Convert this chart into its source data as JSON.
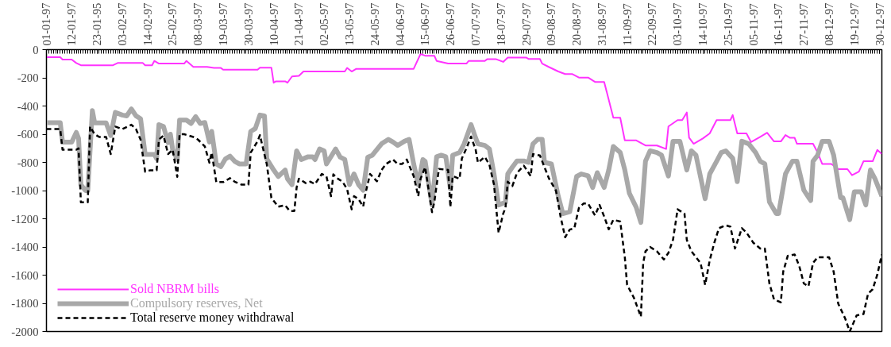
{
  "chart_data": {
    "type": "line",
    "xlim": [
      "1997-01-01",
      "1997-12-31"
    ],
    "ylim": [
      -2000,
      0
    ],
    "xticks": [
      {
        "value": "1997-01-01",
        "label": "01-01-97"
      },
      {
        "value": "1997-01-12",
        "label": "12-01-97"
      },
      {
        "value": "1997-01-23",
        "label": "23-01-95"
      },
      {
        "value": "1997-02-03",
        "label": "03-02-97"
      },
      {
        "value": "1997-02-14",
        "label": "14-02-97"
      },
      {
        "value": "1997-02-25",
        "label": "25-02-97"
      },
      {
        "value": "1997-03-08",
        "label": "08-03-97"
      },
      {
        "value": "1997-03-19",
        "label": "19-03-97"
      },
      {
        "value": "1997-03-30",
        "label": "30-03-97"
      },
      {
        "value": "1997-04-10",
        "label": "10-04-97"
      },
      {
        "value": "1997-04-21",
        "label": "21-04-97"
      },
      {
        "value": "1997-05-02",
        "label": "02-05-97"
      },
      {
        "value": "1997-05-13",
        "label": "13-05-97"
      },
      {
        "value": "1997-05-24",
        "label": "24-05-97"
      },
      {
        "value": "1997-06-04",
        "label": "04-06-97"
      },
      {
        "value": "1997-06-15",
        "label": "15-06-97"
      },
      {
        "value": "1997-06-26",
        "label": "26-06-97"
      },
      {
        "value": "1997-07-07",
        "label": "07-07-97"
      },
      {
        "value": "1997-07-18",
        "label": "18-07-97"
      },
      {
        "value": "1997-07-29",
        "label": "29-07-97"
      },
      {
        "value": "1997-08-09",
        "label": "09-08-97"
      },
      {
        "value": "1997-08-20",
        "label": "20-08-97"
      },
      {
        "value": "1997-08-31",
        "label": "31-08-97"
      },
      {
        "value": "1997-09-11",
        "label": "11-09-97"
      },
      {
        "value": "1997-09-22",
        "label": "22-09-97"
      },
      {
        "value": "1997-10-03",
        "label": "03-10-97"
      },
      {
        "value": "1997-10-14",
        "label": "14-10-97"
      },
      {
        "value": "1997-10-25",
        "label": "25-10-97"
      },
      {
        "value": "1997-11-05",
        "label": "05-11-97"
      },
      {
        "value": "1997-11-16",
        "label": "16-11-97"
      },
      {
        "value": "1997-11-27",
        "label": "27-11-97"
      },
      {
        "value": "1997-12-08",
        "label": "08-12-97"
      },
      {
        "value": "1997-12-19",
        "label": "19-12-97"
      },
      {
        "value": "1997-12-30",
        "label": "30-12-97"
      }
    ],
    "yticks": [
      0,
      -200,
      -400,
      -600,
      -800,
      -1000,
      -1200,
      -1400,
      -1600,
      -1800,
      -2000
    ],
    "legend": "bottom left",
    "series": [
      {
        "name": "Sold NBRM bills",
        "color": "#ff33ff",
        "line_style": "solid",
        "x": [
          "1997-01-01",
          "1997-01-07",
          "1997-01-08",
          "1997-01-12",
          "1997-01-14",
          "1997-01-16",
          "1997-01-30",
          "1997-02-01",
          "1997-02-12",
          "1997-02-13",
          "1997-02-16",
          "1997-02-17",
          "1997-02-19",
          "1997-03-02",
          "1997-03-03",
          "1997-03-06",
          "1997-03-12",
          "1997-03-15",
          "1997-03-18",
          "1997-03-19",
          "1997-04-03",
          "1997-04-04",
          "1997-04-09",
          "1997-04-10",
          "1997-04-11",
          "1997-04-15",
          "1997-04-16",
          "1997-04-18",
          "1997-04-21",
          "1997-04-23",
          "1997-05-11",
          "1997-05-12",
          "1997-05-14",
          "1997-05-16",
          "1997-06-10",
          "1997-06-13",
          "1997-06-15",
          "1997-06-19",
          "1997-06-20",
          "1997-06-25",
          "1997-07-03",
          "1997-07-04",
          "1997-07-11",
          "1997-07-12",
          "1997-07-16",
          "1997-07-19",
          "1997-07-21",
          "1997-07-29",
          "1997-07-30",
          "1997-08-04",
          "1997-08-05",
          "1997-08-08",
          "1997-08-12",
          "1997-08-15",
          "1997-08-18",
          "1997-08-21",
          "1997-08-25",
          "1997-08-28",
          "1997-09-01",
          "1997-09-05",
          "1997-09-08",
          "1997-09-10",
          "1997-09-15",
          "1997-09-19",
          "1997-09-24",
          "1997-09-28",
          "1997-09-29",
          "1997-10-03",
          "1997-10-05",
          "1997-10-07",
          "1997-10-08",
          "1997-10-10",
          "1997-10-14",
          "1997-10-17",
          "1997-10-20",
          "1997-10-26",
          "1997-10-27",
          "1997-10-29",
          "1997-11-02",
          "1997-11-04",
          "1997-11-08",
          "1997-11-11",
          "1997-11-14",
          "1997-11-17",
          "1997-11-19",
          "1997-11-21",
          "1997-11-23",
          "1997-11-24",
          "1997-12-01",
          "1997-12-03",
          "1997-12-05",
          "1997-12-09",
          "1997-12-12",
          "1997-12-16",
          "1997-12-18",
          "1997-12-21",
          "1997-12-23",
          "1997-12-27",
          "1997-12-29",
          "1997-12-31"
        ],
        "values": [
          -54,
          -54,
          -70,
          -70,
          -95,
          -111,
          -111,
          -95,
          -95,
          -111,
          -111,
          -80,
          -99,
          -99,
          -80,
          -122,
          -122,
          -130,
          -130,
          -142,
          -142,
          -128,
          -128,
          -235,
          -225,
          -225,
          -235,
          -190,
          -186,
          -155,
          -155,
          -130,
          -155,
          -136,
          -136,
          -31,
          -43,
          -43,
          -80,
          -99,
          -99,
          -80,
          -80,
          -68,
          -68,
          -87,
          -56,
          -56,
          -66,
          -66,
          -99,
          -124,
          -155,
          -173,
          -173,
          -198,
          -198,
          -229,
          -229,
          -483,
          -483,
          -644,
          -644,
          -680,
          -680,
          -705,
          -545,
          -500,
          -500,
          -446,
          -625,
          -668,
          -630,
          -594,
          -500,
          -500,
          -464,
          -594,
          -594,
          -656,
          -619,
          -590,
          -651,
          -651,
          -606,
          -626,
          -626,
          -668,
          -668,
          -730,
          -811,
          -811,
          -848,
          -848,
          -891,
          -866,
          -792,
          -792,
          -712,
          -740
        ]
      },
      {
        "name": "Compulsory reserves, Net",
        "color": "#a8a8a8",
        "line_style": "solid",
        "x": [
          "1997-01-01",
          "1997-01-07",
          "1997-01-08",
          "1997-01-12",
          "1997-01-14",
          "1997-01-15",
          "1997-01-16",
          "1997-01-18",
          "1997-01-19",
          "1997-01-21",
          "1997-01-22",
          "1997-01-27",
          "1997-01-29",
          "1997-01-31",
          "1997-02-03",
          "1997-02-05",
          "1997-02-07",
          "1997-02-09",
          "1997-02-11",
          "1997-02-13",
          "1997-02-15",
          "1997-02-17",
          "1997-02-18",
          "1997-02-19",
          "1997-02-21",
          "1997-02-23",
          "1997-02-24",
          "1997-02-25",
          "1997-02-27",
          "1997-02-28",
          "1997-03-03",
          "1997-03-05",
          "1997-03-07",
          "1997-03-09",
          "1997-03-11",
          "1997-03-13",
          "1997-03-14",
          "1997-03-16",
          "1997-03-18",
          "1997-03-20",
          "1997-03-22",
          "1997-03-24",
          "1997-03-26",
          "1997-03-29",
          "1997-03-31",
          "1997-04-02",
          "1997-04-04",
          "1997-04-06",
          "1997-04-07",
          "1997-04-10",
          "1997-04-12",
          "1997-04-15",
          "1997-04-16",
          "1997-04-18",
          "1997-04-20",
          "1997-04-22",
          "1997-04-25",
          "1997-04-27",
          "1997-04-28",
          "1997-04-30",
          "1997-05-02",
          "1997-05-03",
          "1997-05-07",
          "1997-05-09",
          "1997-05-11",
          "1997-05-13",
          "1997-05-15",
          "1997-05-17",
          "1997-05-19",
          "1997-05-21",
          "1997-05-23",
          "1997-05-27",
          "1997-05-30",
          "1997-06-01",
          "1997-06-03",
          "1997-06-06",
          "1997-06-08",
          "1997-06-10",
          "1997-06-12",
          "1997-06-14",
          "1997-06-15",
          "1997-06-18",
          "1997-06-20",
          "1997-06-22",
          "1997-06-24",
          "1997-06-26",
          "1997-06-27",
          "1997-06-30",
          "1997-07-02",
          "1997-07-05",
          "1997-07-07",
          "1997-07-08",
          "1997-07-11",
          "1997-07-13",
          "1997-07-15",
          "1997-07-17",
          "1997-07-20",
          "1997-07-21",
          "1997-07-23",
          "1997-07-25",
          "1997-07-28",
          "1997-07-30",
          "1997-08-01",
          "1997-08-03",
          "1997-08-05",
          "1997-08-06",
          "1997-08-09",
          "1997-08-12",
          "1997-08-14",
          "1997-08-17",
          "1997-08-20",
          "1997-08-22",
          "1997-08-25",
          "1997-08-27",
          "1997-08-29",
          "1997-09-01",
          "1997-09-03",
          "1997-09-05",
          "1997-09-08",
          "1997-09-10",
          "1997-09-12",
          "1997-09-15",
          "1997-09-17",
          "1997-09-19",
          "1997-09-21",
          "1997-09-24",
          "1997-09-26",
          "1997-09-29",
          "1997-10-01",
          "1997-10-04",
          "1997-10-07",
          "1997-10-09",
          "1997-10-11",
          "1997-10-15",
          "1997-10-17",
          "1997-10-20",
          "1997-10-22",
          "1997-10-24",
          "1997-10-27",
          "1997-10-29",
          "1997-10-31",
          "1997-11-03",
          "1997-11-06",
          "1997-11-08",
          "1997-11-10",
          "1997-11-12",
          "1997-11-15",
          "1997-11-16",
          "1997-11-19",
          "1997-11-22",
          "1997-11-24",
          "1997-11-27",
          "1997-11-30",
          "1997-12-01",
          "1997-12-03",
          "1997-12-05",
          "1997-12-08",
          "1997-12-10",
          "1997-12-13",
          "1997-12-14",
          "1997-12-17",
          "1997-12-19",
          "1997-12-22",
          "1997-12-24",
          "1997-12-26",
          "1997-12-28",
          "1997-12-31"
        ],
        "values": [
          -518,
          -518,
          -656,
          -656,
          -587,
          -630,
          -958,
          -1000,
          -1000,
          -433,
          -520,
          -520,
          -610,
          -445,
          -464,
          -470,
          -421,
          -470,
          -490,
          -743,
          -743,
          -743,
          -773,
          -532,
          -545,
          -660,
          -600,
          -710,
          -780,
          -500,
          -500,
          -524,
          -475,
          -524,
          -517,
          -656,
          -580,
          -811,
          -830,
          -775,
          -756,
          -792,
          -811,
          -811,
          -580,
          -560,
          -464,
          -470,
          -775,
          -854,
          -900,
          -854,
          -916,
          -958,
          -718,
          -780,
          -760,
          -760,
          -780,
          -705,
          -718,
          -811,
          -705,
          -763,
          -780,
          -958,
          -882,
          -958,
          -997,
          -763,
          -749,
          -668,
          -637,
          -656,
          -680,
          -650,
          -637,
          -811,
          -958,
          -780,
          -792,
          -1102,
          -760,
          -749,
          -760,
          -988,
          -749,
          -730,
          -668,
          -532,
          -626,
          -668,
          -680,
          -705,
          -882,
          -1102,
          -1083,
          -882,
          -834,
          -790,
          -790,
          -800,
          -668,
          -637,
          -637,
          -800,
          -811,
          -1040,
          -1164,
          -1150,
          -900,
          -882,
          -895,
          -978,
          -873,
          -978,
          -854,
          -687,
          -730,
          -854,
          -1020,
          -1120,
          -1226,
          -792,
          -718,
          -730,
          -749,
          -897,
          -650,
          -650,
          -854,
          -718,
          -749,
          -1058,
          -882,
          -792,
          -730,
          -718,
          -771,
          -937,
          -650,
          -668,
          -730,
          -792,
          -811,
          -1080,
          -1164,
          -1164,
          -882,
          -792,
          -792,
          -997,
          -1071,
          -792,
          -749,
          -650,
          -650,
          -749,
          -1050,
          -1050,
          -1206,
          -1009,
          -1009,
          -1102,
          -854,
          -916,
          -1040
        ]
      },
      {
        "name": "Total reserve money withdrawal",
        "color": "#000000",
        "line_style": "dashed",
        "x": [
          "1997-01-01",
          "1997-01-07",
          "1997-01-08",
          "1997-01-14",
          "1997-01-15",
          "1997-01-16",
          "1997-01-19",
          "1997-01-20",
          "1997-01-22",
          "1997-01-24",
          "1997-01-27",
          "1997-01-29",
          "1997-01-31",
          "1997-02-03",
          "1997-02-07",
          "1997-02-09",
          "1997-02-11",
          "1997-02-13",
          "1997-02-15",
          "1997-02-18",
          "1997-02-19",
          "1997-02-21",
          "1997-02-23",
          "1997-02-25",
          "1997-02-27",
          "1997-02-28",
          "1997-03-02",
          "1997-03-06",
          "1997-03-08",
          "1997-03-11",
          "1997-03-13",
          "1997-03-14",
          "1997-03-16",
          "1997-03-19",
          "1997-03-22",
          "1997-03-24",
          "1997-03-27",
          "1997-03-30",
          "1997-03-31",
          "1997-04-03",
          "1997-04-04",
          "1997-04-07",
          "1997-04-09",
          "1997-04-12",
          "1997-04-15",
          "1997-04-17",
          "1997-04-19",
          "1997-04-20",
          "1997-04-21",
          "1997-04-24",
          "1997-04-26",
          "1997-04-28",
          "1997-05-01",
          "1997-05-03",
          "1997-05-05",
          "1997-05-06",
          "1997-05-08",
          "1997-05-10",
          "1997-05-12",
          "1997-05-14",
          "1997-05-15",
          "1997-05-17",
          "1997-05-19",
          "1997-05-20",
          "1997-05-22",
          "1997-05-25",
          "1997-05-27",
          "1997-05-29",
          "1997-06-01",
          "1997-06-03",
          "1997-06-05",
          "1997-06-07",
          "1997-06-10",
          "1997-06-12",
          "1997-06-13",
          "1997-06-15",
          "1997-06-18",
          "1997-06-19",
          "1997-06-21",
          "1997-06-25",
          "1997-06-26",
          "1997-06-27",
          "1997-06-30",
          "1997-07-01",
          "1997-07-03",
          "1997-07-05",
          "1997-07-07",
          "1997-07-08",
          "1997-07-11",
          "1997-07-13",
          "1997-07-15",
          "1997-07-17",
          "1997-07-19",
          "1997-07-20",
          "1997-07-21",
          "1997-07-23",
          "1997-07-25",
          "1997-07-28",
          "1997-07-31",
          "1997-08-01",
          "1997-08-04",
          "1997-08-06",
          "1997-08-08",
          "1997-08-11",
          "1997-08-13",
          "1997-08-15",
          "1997-08-17",
          "1997-08-19",
          "1997-08-21",
          "1997-08-23",
          "1997-08-25",
          "1997-08-28",
          "1997-08-30",
          "1997-09-01",
          "1997-09-03",
          "1997-09-05",
          "1997-09-08",
          "1997-09-10",
          "1997-09-11",
          "1997-09-14",
          "1997-09-17",
          "1997-09-18",
          "1997-09-19",
          "1997-09-21",
          "1997-09-24",
          "1997-09-27",
          "1997-09-29",
          "1997-10-01",
          "1997-10-03",
          "1997-10-06",
          "1997-10-07",
          "1997-10-09",
          "1997-10-13",
          "1997-10-15",
          "1997-10-17",
          "1997-10-19",
          "1997-10-21",
          "1997-10-24",
          "1997-10-26",
          "1997-10-28",
          "1997-10-31",
          "1997-11-02",
          "1997-11-05",
          "1997-11-08",
          "1997-11-10",
          "1997-11-12",
          "1997-11-14",
          "1997-11-17",
          "1997-11-18",
          "1997-11-20",
          "1997-11-23",
          "1997-11-25",
          "1997-11-27",
          "1997-11-29",
          "1997-12-01",
          "1997-12-03",
          "1997-12-06",
          "1997-12-08",
          "1997-12-10",
          "1997-12-12",
          "1997-12-15",
          "1997-12-17",
          "1997-12-20",
          "1997-12-23",
          "1997-12-25",
          "1997-12-27",
          "1997-12-29",
          "1997-12-31"
        ],
        "values": [
          -564,
          -564,
          -710,
          -710,
          -700,
          -1083,
          -1083,
          -546,
          -600,
          -620,
          -620,
          -741,
          -546,
          -564,
          -533,
          -564,
          -638,
          -866,
          -857,
          -857,
          -638,
          -610,
          -741,
          -710,
          -903,
          -600,
          -600,
          -620,
          -638,
          -687,
          -802,
          -730,
          -940,
          -940,
          -912,
          -937,
          -958,
          -958,
          -730,
          -650,
          -607,
          -813,
          -1052,
          -1114,
          -1104,
          -1145,
          -1145,
          -978,
          -916,
          -947,
          -937,
          -954,
          -882,
          -900,
          -1040,
          -885,
          -916,
          -937,
          -990,
          -1133,
          -1040,
          -1061,
          -1114,
          -1020,
          -882,
          -934,
          -854,
          -811,
          -780,
          -811,
          -811,
          -780,
          -897,
          -1040,
          -916,
          -834,
          -1153,
          -1081,
          -846,
          -854,
          -1118,
          -897,
          -916,
          -772,
          -700,
          -617,
          -710,
          -802,
          -761,
          -817,
          -958,
          -1300,
          -1164,
          -1123,
          -937,
          -968,
          -875,
          -823,
          -897,
          -741,
          -751,
          -834,
          -916,
          -1000,
          -1184,
          -1331,
          -1277,
          -1267,
          -1123,
          -1092,
          -1092,
          -1176,
          -1102,
          -1184,
          -1275,
          -1207,
          -1220,
          -1473,
          -1669,
          -1762,
          -1895,
          -1514,
          -1431,
          -1400,
          -1431,
          -1489,
          -1442,
          -1349,
          -1133,
          -1164,
          -1349,
          -1431,
          -1514,
          -1669,
          -1494,
          -1370,
          -1267,
          -1246,
          -1256,
          -1411,
          -1267,
          -1298,
          -1370,
          -1411,
          -1411,
          -1659,
          -1772,
          -1793,
          -1576,
          -1463,
          -1453,
          -1535,
          -1659,
          -1680,
          -1514,
          -1473,
          -1473,
          -1473,
          -1576,
          -1803,
          -1907,
          -2000,
          -1886,
          -1876,
          -1731,
          -1700,
          -1597,
          -1453
        ]
      }
    ]
  }
}
